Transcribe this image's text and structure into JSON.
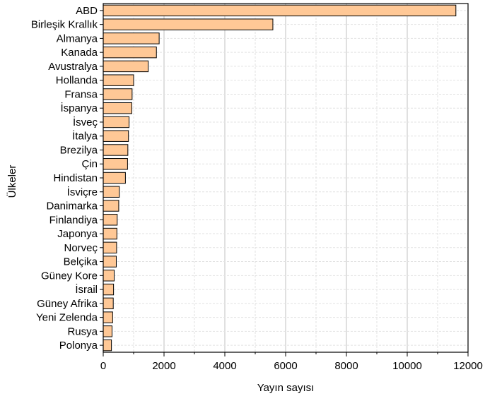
{
  "chart_data": {
    "type": "bar",
    "orientation": "horizontal",
    "categories": [
      "ABD",
      "Birleşik Krallık",
      "Almanya",
      "Kanada",
      "Avustralya",
      "Hollanda",
      "Fransa",
      "İspanya",
      "İsveç",
      "İtalya",
      "Brezilya",
      "Çin",
      "Hindistan",
      "İsviçre",
      "Danimarka",
      "Finlandiya",
      "Japonya",
      "Norveç",
      "Belçika",
      "Güney Kore",
      "İsrail",
      "Güney Afrika",
      "Yeni Zelenda",
      "Rusya",
      "Polonya"
    ],
    "values": [
      11600,
      5580,
      1840,
      1750,
      1480,
      1000,
      950,
      940,
      850,
      830,
      810,
      800,
      730,
      530,
      510,
      460,
      450,
      440,
      430,
      360,
      340,
      330,
      310,
      290,
      270
    ],
    "xlabel": "Yayın sayısı",
    "ylabel": "Ülkeler",
    "xlim": [
      0,
      12000
    ],
    "xticks": [
      0,
      2000,
      4000,
      6000,
      8000,
      10000,
      12000
    ],
    "grid": true,
    "bar_color": "#FFC896",
    "bar_edge_color": "#000000",
    "major_grid_color": "#c0c0c0",
    "minor_grid_color": "#e2e2e2"
  }
}
